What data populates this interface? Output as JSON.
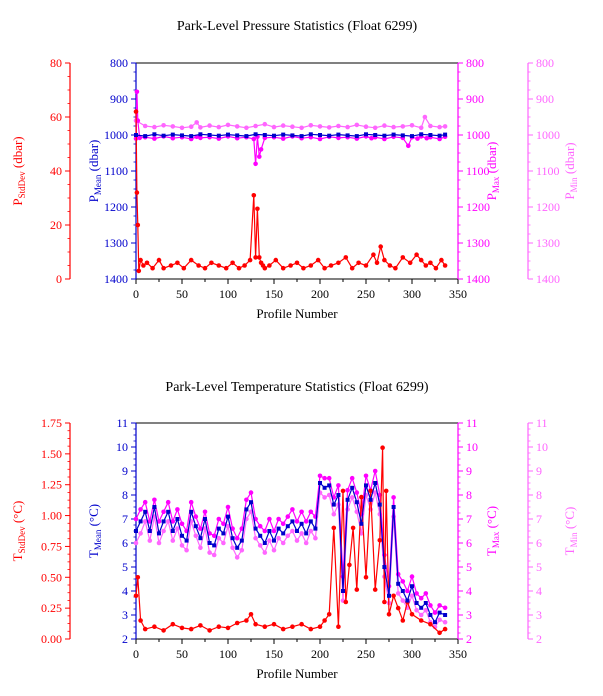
{
  "colors": {
    "std": "#ff0000",
    "mean": "#0000cc",
    "max": "#ff00ff",
    "min": "#ff66ff",
    "frame": "#000000"
  },
  "chart_data": [
    {
      "type": "scatter",
      "title": "Park-Level Pressure Statistics (Float 6299)",
      "xlabel": "Profile Number",
      "xlim": [
        0,
        350
      ],
      "xticks": [
        "0",
        "50",
        "100",
        "150",
        "200",
        "250",
        "300",
        "350"
      ],
      "axes": {
        "std": {
          "label": "P",
          "sub": "StdDev",
          "unit": " (dbar)",
          "lim": [
            0,
            80
          ],
          "ticks": [
            "0",
            "20",
            "40",
            "60",
            "80"
          ]
        },
        "mean": {
          "label": "P",
          "sub": "Mean",
          "unit": " (dbar)",
          "lim": [
            1400,
            800
          ],
          "ticks": [
            "800",
            "900",
            "1000",
            "1100",
            "1200",
            "1300",
            "1400"
          ]
        },
        "max": {
          "label": "P",
          "sub": "Max",
          "unit": " (dbar)",
          "lim": [
            1400,
            800
          ],
          "ticks": [
            "800",
            "900",
            "1000",
            "1100",
            "1200",
            "1300",
            "1400"
          ]
        },
        "min": {
          "label": "P",
          "sub": "Min",
          "unit": " (dbar)",
          "lim": [
            1400,
            800
          ],
          "ticks": [
            "800",
            "900",
            "1000",
            "1100",
            "1200",
            "1300",
            "1400"
          ]
        }
      },
      "series": [
        {
          "key": "std",
          "x": [
            0,
            1,
            2,
            3,
            5,
            8,
            12,
            18,
            25,
            30,
            38,
            45,
            52,
            60,
            68,
            75,
            82,
            90,
            98,
            105,
            112,
            118,
            124,
            128,
            130,
            132,
            134,
            136,
            138,
            140,
            145,
            152,
            160,
            168,
            175,
            182,
            190,
            198,
            205,
            212,
            220,
            228,
            235,
            242,
            250,
            258,
            262,
            266,
            270,
            276,
            282,
            290,
            298,
            305,
            310,
            315,
            320,
            326,
            332,
            336
          ],
          "y": [
            62,
            32,
            20,
            3,
            7,
            5,
            6,
            4,
            7,
            4,
            5,
            6,
            4,
            7,
            5,
            4,
            6,
            5,
            4,
            6,
            4,
            5,
            7,
            31,
            8,
            26,
            8,
            6,
            5,
            4,
            5,
            7,
            4,
            5,
            6,
            4,
            5,
            7,
            4,
            5,
            6,
            8,
            4,
            6,
            5,
            9,
            6,
            12,
            7,
            5,
            4,
            8,
            6,
            9,
            7,
            5,
            6,
            4,
            7,
            5
          ]
        },
        {
          "key": "mean",
          "x": [
            0,
            10,
            20,
            30,
            40,
            50,
            60,
            70,
            80,
            90,
            100,
            110,
            120,
            130,
            140,
            150,
            160,
            170,
            180,
            190,
            200,
            210,
            220,
            230,
            240,
            250,
            260,
            270,
            280,
            290,
            300,
            310,
            320,
            330,
            336
          ],
          "y": [
            1000,
            1003,
            998,
            1002,
            999,
            1001,
            1003,
            998,
            1000,
            1002,
            999,
            1001,
            1003,
            998,
            1000,
            1002,
            999,
            1001,
            1003,
            998,
            1000,
            1002,
            999,
            1001,
            1003,
            998,
            1000,
            1002,
            999,
            1001,
            1003,
            998,
            1000,
            1002,
            999
          ]
        },
        {
          "key": "max",
          "x": [
            0,
            1,
            2,
            4,
            10,
            20,
            30,
            40,
            50,
            60,
            66,
            70,
            80,
            90,
            100,
            110,
            120,
            128,
            130,
            132,
            134,
            136,
            140,
            150,
            160,
            170,
            180,
            190,
            200,
            210,
            220,
            230,
            240,
            250,
            256,
            260,
            270,
            280,
            290,
            296,
            300,
            306,
            310,
            316,
            320,
            330,
            336
          ],
          "y": [
            1010,
            880,
            960,
            1008,
            1006,
            1010,
            1004,
            1009,
            1006,
            1011,
            1005,
            1008,
            1006,
            1010,
            1004,
            1009,
            1006,
            1011,
            1080,
            1005,
            1060,
            1040,
            1008,
            1006,
            1010,
            1004,
            1009,
            1006,
            1011,
            1005,
            1008,
            1006,
            1010,
            1004,
            1009,
            1006,
            1011,
            1005,
            1008,
            1030,
            1006,
            1010,
            1004,
            1009,
            1006,
            1011,
            1005
          ]
        },
        {
          "key": "min",
          "x": [
            0,
            10,
            20,
            30,
            40,
            50,
            60,
            66,
            70,
            80,
            90,
            100,
            110,
            120,
            130,
            140,
            150,
            160,
            170,
            180,
            190,
            200,
            210,
            220,
            230,
            240,
            250,
            260,
            270,
            280,
            290,
            300,
            310,
            314,
            320,
            330,
            336
          ],
          "y": [
            960,
            975,
            978,
            973,
            976,
            980,
            977,
            965,
            979,
            974,
            978,
            972,
            976,
            980,
            975,
            970,
            978,
            974,
            977,
            980,
            973,
            976,
            979,
            975,
            978,
            972,
            977,
            980,
            974,
            978,
            976,
            973,
            980,
            950,
            975,
            978,
            976
          ]
        }
      ]
    },
    {
      "type": "scatter",
      "title": "Park-Level Temperature Statistics (Float 6299)",
      "xlabel": "Profile Number",
      "xlim": [
        0,
        350
      ],
      "xticks": [
        "0",
        "50",
        "100",
        "150",
        "200",
        "250",
        "300",
        "350"
      ],
      "axes": {
        "std": {
          "label": "T",
          "sub": "StdDev",
          "unit": " (°C)",
          "lim": [
            0,
            1.75
          ],
          "ticks": [
            "0.00",
            "0.25",
            "0.50",
            "0.75",
            "1.00",
            "1.25",
            "1.50",
            "1.75"
          ]
        },
        "mean": {
          "label": "T",
          "sub": "Mean",
          "unit": " (°C)",
          "lim": [
            2,
            11
          ],
          "ticks": [
            "2",
            "3",
            "4",
            "5",
            "6",
            "7",
            "8",
            "9",
            "10",
            "11"
          ]
        },
        "max": {
          "label": "T",
          "sub": "Max",
          "unit": " (°C)",
          "lim": [
            2,
            11
          ],
          "ticks": [
            "2",
            "3",
            "4",
            "5",
            "6",
            "7",
            "8",
            "9",
            "10",
            "11"
          ]
        },
        "min": {
          "label": "T",
          "sub": "Min",
          "unit": " (°C)",
          "lim": [
            2,
            11
          ],
          "ticks": [
            "2",
            "3",
            "4",
            "5",
            "6",
            "7",
            "8",
            "9",
            "10",
            "11"
          ]
        }
      },
      "series": [
        {
          "key": "std",
          "x": [
            0,
            2,
            5,
            10,
            20,
            30,
            40,
            50,
            60,
            70,
            80,
            90,
            100,
            110,
            120,
            125,
            130,
            140,
            150,
            160,
            170,
            180,
            190,
            200,
            205,
            210,
            215,
            220,
            225,
            228,
            232,
            236,
            240,
            245,
            250,
            255,
            260,
            265,
            268,
            270,
            272,
            275,
            280,
            285,
            290,
            295,
            300,
            310,
            320,
            330,
            336
          ],
          "y": [
            0.35,
            0.5,
            0.15,
            0.08,
            0.1,
            0.07,
            0.12,
            0.09,
            0.08,
            0.11,
            0.07,
            0.1,
            0.09,
            0.13,
            0.15,
            0.2,
            0.12,
            0.1,
            0.12,
            0.08,
            0.1,
            0.12,
            0.08,
            0.1,
            0.15,
            0.2,
            0.9,
            0.1,
            1.2,
            0.3,
            0.6,
            0.9,
            0.4,
            1.15,
            0.5,
            1.2,
            0.4,
            0.8,
            1.55,
            0.3,
            1.2,
            0.2,
            0.35,
            0.25,
            0.15,
            0.3,
            0.2,
            0.15,
            0.12,
            0.05,
            0.08
          ]
        },
        {
          "key": "mean",
          "x": [
            0,
            5,
            10,
            15,
            20,
            25,
            30,
            35,
            40,
            45,
            50,
            55,
            60,
            65,
            70,
            75,
            80,
            85,
            90,
            95,
            100,
            105,
            110,
            115,
            120,
            125,
            130,
            135,
            140,
            145,
            150,
            155,
            160,
            165,
            170,
            175,
            180,
            185,
            190,
            195,
            200,
            205,
            210,
            215,
            220,
            225,
            230,
            235,
            240,
            245,
            250,
            255,
            260,
            265,
            270,
            275,
            280,
            285,
            290,
            295,
            300,
            305,
            310,
            315,
            320,
            325,
            330,
            336
          ],
          "y": [
            6.5,
            6.9,
            7.3,
            6.5,
            7.5,
            6.4,
            6.9,
            7.3,
            6.5,
            7.0,
            6.3,
            6.1,
            7.3,
            6.7,
            6.2,
            7.0,
            6.0,
            5.9,
            6.6,
            6.4,
            7.1,
            6.2,
            5.8,
            6.1,
            7.4,
            7.7,
            6.6,
            6.3,
            6.0,
            6.5,
            6.1,
            6.6,
            6.4,
            6.7,
            6.9,
            6.5,
            6.8,
            6.4,
            6.9,
            6.6,
            8.5,
            8.3,
            8.4,
            7.6,
            8.0,
            4.0,
            7.8,
            8.3,
            7.7,
            6.8,
            8.4,
            7.8,
            8.5,
            7.6,
            5.0,
            3.8,
            7.5,
            4.3,
            4.0,
            3.6,
            4.2,
            3.5,
            3.3,
            3.5,
            3.0,
            2.7,
            3.1,
            3.0
          ]
        },
        {
          "key": "max",
          "x": [
            0,
            5,
            10,
            15,
            20,
            25,
            30,
            35,
            40,
            45,
            50,
            55,
            60,
            65,
            70,
            75,
            80,
            85,
            90,
            95,
            100,
            105,
            110,
            115,
            120,
            125,
            130,
            135,
            140,
            145,
            150,
            155,
            160,
            165,
            170,
            175,
            180,
            185,
            190,
            195,
            200,
            205,
            210,
            215,
            220,
            225,
            230,
            235,
            240,
            245,
            250,
            255,
            260,
            265,
            270,
            275,
            280,
            285,
            290,
            295,
            300,
            305,
            310,
            315,
            320,
            325,
            330,
            336
          ],
          "y": [
            7.0,
            7.4,
            7.7,
            6.9,
            7.8,
            6.9,
            7.3,
            7.7,
            6.9,
            7.4,
            6.8,
            6.5,
            7.7,
            7.1,
            6.6,
            7.3,
            6.4,
            6.3,
            7.0,
            6.8,
            7.5,
            6.6,
            6.2,
            6.6,
            7.8,
            8.1,
            7.0,
            6.7,
            6.5,
            7.0,
            6.5,
            7.0,
            6.8,
            7.1,
            7.4,
            6.9,
            7.3,
            6.9,
            7.3,
            7.1,
            8.8,
            8.7,
            8.7,
            7.9,
            8.4,
            4.6,
            8.2,
            8.7,
            8.1,
            7.2,
            8.8,
            8.2,
            9.0,
            8.0,
            5.5,
            4.2,
            7.9,
            4.7,
            4.4,
            4.0,
            4.6,
            3.9,
            3.7,
            3.9,
            3.4,
            3.1,
            3.4,
            3.3
          ]
        },
        {
          "key": "min",
          "x": [
            0,
            5,
            10,
            15,
            20,
            25,
            30,
            35,
            40,
            45,
            50,
            55,
            60,
            65,
            70,
            75,
            80,
            85,
            90,
            95,
            100,
            105,
            110,
            115,
            120,
            125,
            130,
            135,
            140,
            145,
            150,
            155,
            160,
            165,
            170,
            175,
            180,
            185,
            190,
            195,
            200,
            205,
            210,
            215,
            220,
            225,
            230,
            235,
            240,
            245,
            250,
            255,
            260,
            265,
            270,
            275,
            280,
            285,
            290,
            295,
            300,
            305,
            310,
            315,
            320,
            325,
            330,
            336
          ],
          "y": [
            6.0,
            6.4,
            6.9,
            6.1,
            7.1,
            6.0,
            6.5,
            6.9,
            6.1,
            6.6,
            5.9,
            5.7,
            6.9,
            6.3,
            5.8,
            6.6,
            5.6,
            5.5,
            6.2,
            6.0,
            6.7,
            5.8,
            5.4,
            5.7,
            7.0,
            7.3,
            6.2,
            5.9,
            5.6,
            6.1,
            5.7,
            6.2,
            6.0,
            6.3,
            6.5,
            6.1,
            6.4,
            6.0,
            6.5,
            6.2,
            8.1,
            7.9,
            8.0,
            7.2,
            7.6,
            3.6,
            7.4,
            7.9,
            7.3,
            6.4,
            8.0,
            7.4,
            8.1,
            7.2,
            4.6,
            3.5,
            7.1,
            3.9,
            3.6,
            3.3,
            3.8,
            3.2,
            3.0,
            3.2,
            2.7,
            2.5,
            2.8,
            2.7
          ]
        }
      ]
    }
  ]
}
